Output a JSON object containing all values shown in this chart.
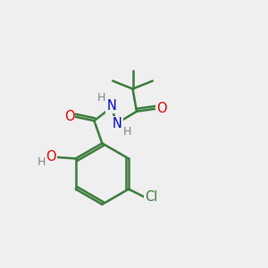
{
  "bg_color": "#efefef",
  "bond_color": "#3a7a3a",
  "bond_width": 1.8,
  "atom_colors": {
    "O": "#dd0000",
    "N": "#0000cc",
    "Cl": "#3a7a3a",
    "H": "#808080"
  },
  "font_size_atom": 10.5,
  "font_size_h": 9.0,
  "font_size_cl": 10.5
}
